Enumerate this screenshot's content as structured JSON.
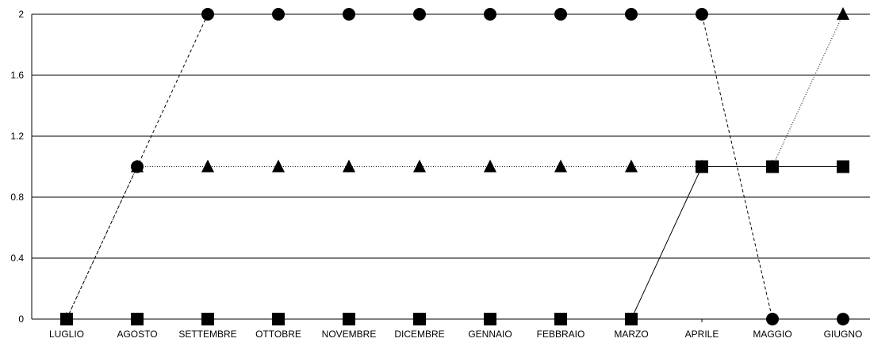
{
  "chart_data": {
    "type": "line",
    "categories": [
      "LUGLIO",
      "AGOSTO",
      "SETTEMBRE",
      "OTTOBRE",
      "NOVEMBRE",
      "DICEMBRE",
      "GENNAIO",
      "FEBBRAIO",
      "MARZO",
      "APRILE",
      "MAGGIO",
      "GIUGNO"
    ],
    "ylim": [
      0,
      2
    ],
    "yticks": [
      "0",
      "0.4",
      "0.8",
      "1.2",
      "1.6",
      "2"
    ],
    "grid": true,
    "series": [
      {
        "marker": "circle",
        "line_style": "dashed",
        "values": [
          0,
          1,
          2,
          2,
          2,
          2,
          2,
          2,
          2,
          2,
          0,
          0
        ]
      },
      {
        "marker": "triangle",
        "line_style": "dotted",
        "values": [
          0,
          1,
          1,
          1,
          1,
          1,
          1,
          1,
          1,
          1,
          1,
          2
        ]
      },
      {
        "marker": "square",
        "line_style": "solid",
        "values": [
          0,
          0,
          0,
          0,
          0,
          0,
          0,
          0,
          0,
          1,
          1,
          1
        ]
      }
    ],
    "title": "",
    "xlabel": "",
    "ylabel": ""
  }
}
